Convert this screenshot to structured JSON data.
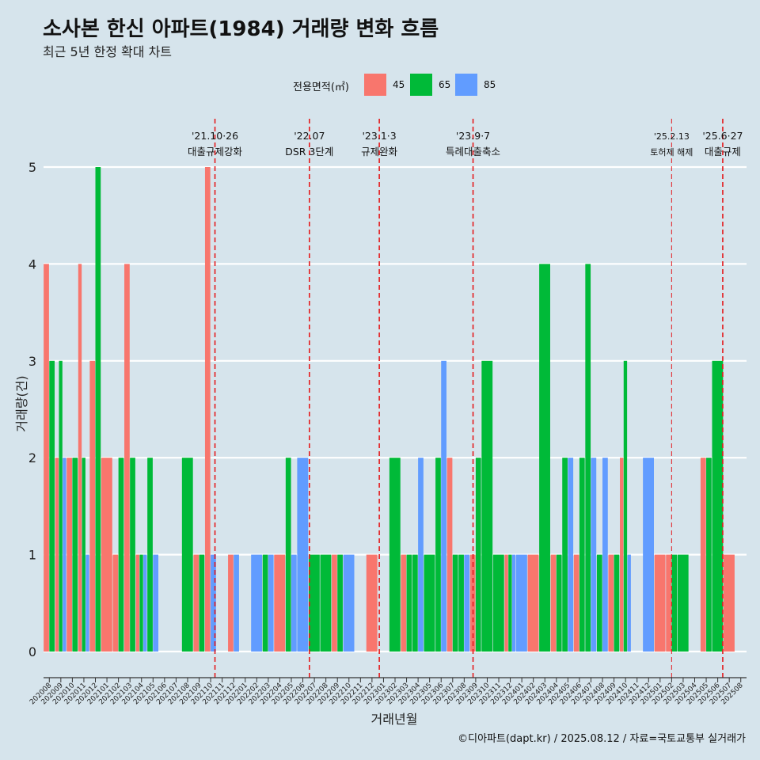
{
  "header": {
    "title": "소사본 한신 아파트(1984) 거래량 변화 흐름",
    "subtitle": "최근 5년 한정 확대 차트"
  },
  "legend": {
    "title": "전용면적(㎡)",
    "items": [
      {
        "label": "45",
        "color": "#f8766d"
      },
      {
        "label": "65",
        "color": "#00ba38"
      },
      {
        "label": "85",
        "color": "#619cff"
      }
    ]
  },
  "caption": "©디아파트(dapt.kr) / 2025.08.12 / 자료=국토교통부 실거래가",
  "chart_data": {
    "type": "bar",
    "title": "소사본 한신 아파트(1984) 거래량 변화 흐름",
    "subtitle": "최근 5년 한정 확대 차트",
    "xlabel": "거래년월",
    "ylabel": "거래량(건)",
    "ylim": [
      0,
      5
    ],
    "yticks": [
      0,
      1,
      2,
      3,
      4,
      5
    ],
    "grid": true,
    "legend_position": "top",
    "categories": [
      "202008",
      "202009",
      "202010",
      "202011",
      "202012",
      "202101",
      "202102",
      "202103",
      "202104",
      "202105",
      "202106",
      "202107",
      "202108",
      "202109",
      "202110",
      "202111",
      "202112",
      "202201",
      "202202",
      "202203",
      "202204",
      "202205",
      "202206",
      "202207",
      "202208",
      "202209",
      "202210",
      "202211",
      "202212",
      "202301",
      "202302",
      "202303",
      "202304",
      "202305",
      "202306",
      "202307",
      "202308",
      "202309",
      "202310",
      "202311",
      "202312",
      "202401",
      "202402",
      "202403",
      "202404",
      "202405",
      "202406",
      "202407",
      "202408",
      "202409",
      "202410",
      "202411",
      "202412",
      "202501",
      "202502",
      "202503",
      "202504",
      "202505",
      "202506",
      "202507",
      "202508"
    ],
    "series": [
      {
        "name": "45",
        "color": "#f8766d",
        "values": [
          4,
          2,
          2,
          4,
          3,
          2,
          1,
          4,
          1,
          0,
          0,
          0,
          0,
          1,
          5,
          0,
          1,
          0,
          0,
          0,
          1,
          0,
          0,
          0,
          0,
          1,
          0,
          0,
          1,
          0,
          0,
          1,
          0,
          0,
          0,
          2,
          0,
          1,
          0,
          0,
          1,
          0,
          1,
          0,
          1,
          0,
          1,
          0,
          0,
          1,
          2,
          0,
          0,
          1,
          1,
          0,
          0,
          2,
          0,
          1,
          0
        ]
      },
      {
        "name": "65",
        "color": "#00ba38",
        "values": [
          3,
          3,
          2,
          2,
          5,
          0,
          2,
          2,
          1,
          2,
          0,
          0,
          2,
          1,
          0,
          0,
          0,
          0,
          0,
          1,
          0,
          2,
          0,
          1,
          1,
          1,
          0,
          0,
          0,
          0,
          2,
          1,
          1,
          1,
          2,
          1,
          1,
          2,
          3,
          1,
          1,
          0,
          0,
          4,
          1,
          2,
          2,
          4,
          1,
          1,
          3,
          0,
          0,
          0,
          1,
          1,
          0,
          2,
          3,
          0,
          0
        ]
      },
      {
        "name": "85",
        "color": "#619cff",
        "values": [
          0,
          2,
          0,
          1,
          0,
          0,
          0,
          0,
          1,
          1,
          0,
          0,
          0,
          0,
          1,
          0,
          1,
          0,
          1,
          1,
          0,
          1,
          2,
          0,
          0,
          0,
          1,
          0,
          0,
          0,
          0,
          0,
          2,
          0,
          3,
          0,
          1,
          0,
          0,
          0,
          1,
          1,
          0,
          0,
          0,
          2,
          0,
          2,
          2,
          0,
          1,
          0,
          2,
          0,
          0,
          0,
          0,
          0,
          0,
          0,
          0
        ]
      }
    ],
    "annotations": [
      {
        "date": "2021-10-26",
        "line1": "'21.10·26",
        "line2": "대출규제강화"
      },
      {
        "date": "2022-07",
        "line1": "'22.07",
        "line2": "DSR 3단계"
      },
      {
        "date": "2023-01-03",
        "line1": "'23.1·3",
        "line2": "규제완화"
      },
      {
        "date": "2023-09-07",
        "line1": "'23.9·7",
        "line2": "특례대출축소"
      },
      {
        "date": "2025-02-13",
        "line1": "'25.2.13",
        "line2": "토허제 해제"
      },
      {
        "date": "2025-06-27",
        "line1": "'25.6·27",
        "line2": "대출규제"
      }
    ]
  }
}
